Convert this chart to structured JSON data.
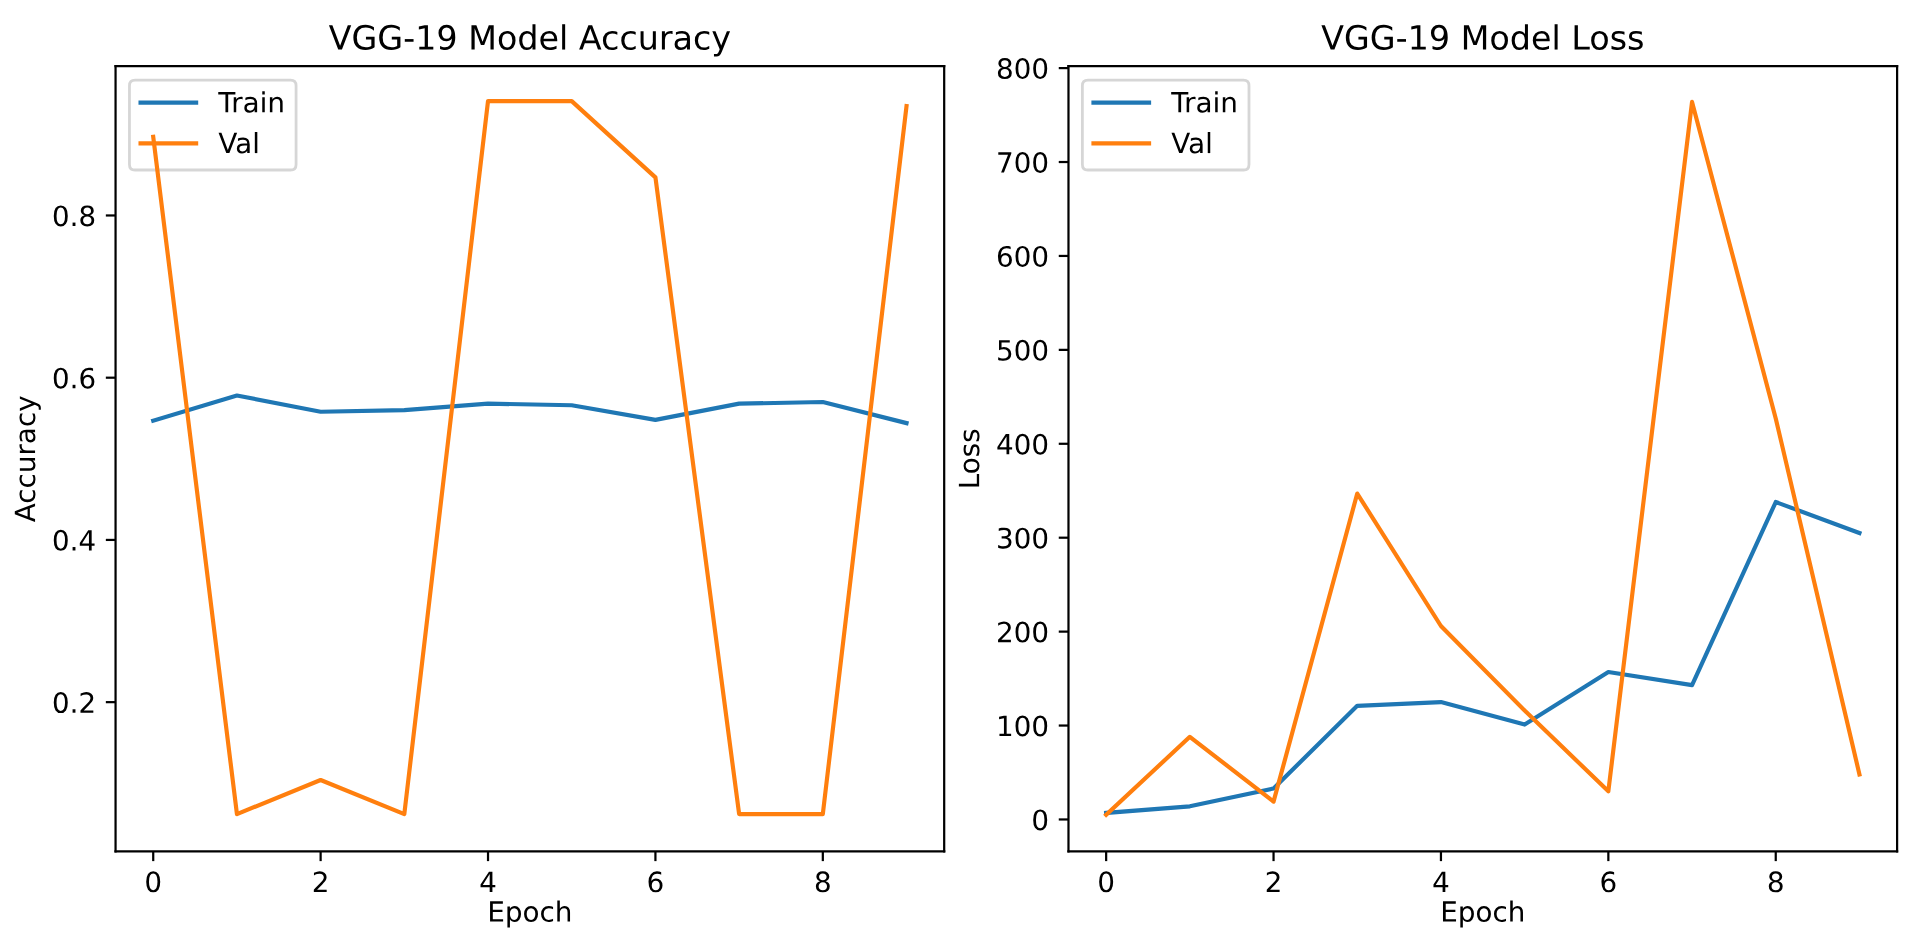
{
  "chart_data": [
    {
      "type": "line",
      "title": "VGG-19 Model Accuracy",
      "xlabel": "Epoch",
      "ylabel": "Accuracy",
      "x": [
        0,
        1,
        2,
        3,
        4,
        5,
        6,
        7,
        8,
        9
      ],
      "xlim": [
        -0.45,
        9.45
      ],
      "xticks": [
        0,
        2,
        4,
        6,
        8
      ],
      "ylim": [
        0.016,
        0.984
      ],
      "yticks": [
        0.2,
        0.4,
        0.6,
        0.8
      ],
      "legend": "top left",
      "grid": false,
      "series": [
        {
          "name": "Train",
          "color": "#1f77b4",
          "values": [
            0.547,
            0.578,
            0.558,
            0.56,
            0.568,
            0.566,
            0.548,
            0.568,
            0.57,
            0.544
          ]
        },
        {
          "name": "Val",
          "color": "#ff7f0e",
          "values": [
            0.897,
            0.062,
            0.104,
            0.062,
            0.941,
            0.941,
            0.847,
            0.062,
            0.062,
            0.935
          ]
        }
      ]
    },
    {
      "type": "line",
      "title": "VGG-19 Model Loss",
      "xlabel": "Epoch",
      "ylabel": "Loss",
      "x": [
        0,
        1,
        2,
        3,
        4,
        5,
        6,
        7,
        8,
        9
      ],
      "xlim": [
        -0.45,
        9.45
      ],
      "xticks": [
        0,
        2,
        4,
        6,
        8
      ],
      "ylim": [
        -34,
        802
      ],
      "yticks": [
        0,
        100,
        200,
        300,
        400,
        500,
        600,
        700,
        800
      ],
      "legend": "top left",
      "grid": false,
      "series": [
        {
          "name": "Train",
          "color": "#1f77b4",
          "values": [
            7,
            14,
            33,
            121,
            125,
            101,
            157,
            143,
            338,
            305
          ]
        },
        {
          "name": "Val",
          "color": "#ff7f0e",
          "values": [
            5,
            88,
            19,
            347,
            206,
            116,
            30,
            764,
            427,
            48
          ]
        }
      ]
    }
  ]
}
